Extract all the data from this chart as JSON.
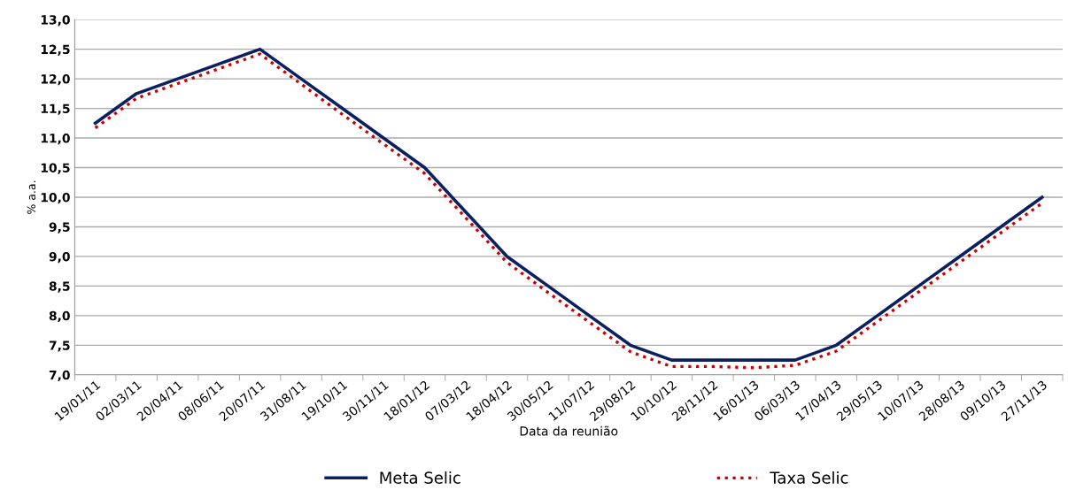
{
  "chart_data": {
    "type": "line",
    "xlabel": "Data da reunião",
    "ylabel": "% a.a.",
    "categories": [
      "19/01/11",
      "02/03/11",
      "20/04/11",
      "08/06/11",
      "20/07/11",
      "31/08/11",
      "19/10/11",
      "30/11/11",
      "18/01/12",
      "07/03/12",
      "18/04/12",
      "30/05/12",
      "11/07/12",
      "29/08/12",
      "10/10/12",
      "28/11/12",
      "16/01/13",
      "06/03/13",
      "17/04/13",
      "29/05/13",
      "10/07/13",
      "28/08/13",
      "09/10/13",
      "27/11/13"
    ],
    "series": [
      {
        "name": "Meta Selic",
        "color": "#0b2060",
        "line_style": "solid",
        "values": [
          11.25,
          11.75,
          12.0,
          12.25,
          12.5,
          12.0,
          11.5,
          11.0,
          10.5,
          9.75,
          9.0,
          8.5,
          8.0,
          7.5,
          7.25,
          7.25,
          7.25,
          7.25,
          7.5,
          8.0,
          8.5,
          9.0,
          9.5,
          10.0
        ]
      },
      {
        "name": "Taxa Selic",
        "color": "#cc0000",
        "line_style": "dotted",
        "values": [
          11.17,
          11.67,
          11.92,
          12.17,
          12.42,
          11.91,
          11.4,
          10.9,
          10.4,
          9.65,
          8.9,
          8.39,
          7.89,
          7.39,
          7.14,
          7.14,
          7.12,
          7.16,
          7.4,
          7.9,
          8.4,
          8.9,
          9.4,
          9.9
        ]
      }
    ],
    "ylim": [
      7.0,
      13.0
    ],
    "yticks": [
      {
        "value": 7.0,
        "label": "7,0"
      },
      {
        "value": 7.5,
        "label": "7,5"
      },
      {
        "value": 8.0,
        "label": "8,0"
      },
      {
        "value": 8.5,
        "label": "8,5"
      },
      {
        "value": 9.0,
        "label": "9,0"
      },
      {
        "value": 9.5,
        "label": "9,5"
      },
      {
        "value": 10.0,
        "label": "10,0"
      },
      {
        "value": 10.5,
        "label": "10,5"
      },
      {
        "value": 11.0,
        "label": "11,0"
      },
      {
        "value": 11.5,
        "label": "11,5"
      },
      {
        "value": 12.0,
        "label": "12,0"
      },
      {
        "value": 12.5,
        "label": "12,5"
      },
      {
        "value": 13.0,
        "label": "13,0"
      }
    ],
    "grid": "y",
    "legend": "bottom",
    "marker": "none"
  }
}
